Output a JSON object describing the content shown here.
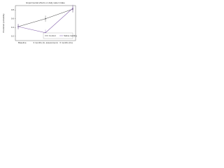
{
  "chart_data": {
    "type": "line",
    "title": "Experimental effects on daily water intake",
    "y_label": "Predicted probability",
    "categories": [
      "Baseline",
      "3 months (G. assessment)",
      "6 months (Fu)"
    ],
    "series": [
      {
        "name": "Control",
        "color": "#555555",
        "values": [
          0.42,
          0.6,
          0.82
        ],
        "errors": [
          0.06,
          0.07,
          0.08
        ]
      },
      {
        "name": "Saline loading",
        "color": "#8c6bb1",
        "values": [
          0.42,
          0.28,
          0.84
        ],
        "errors": [
          0.06,
          0.07,
          0.08
        ]
      }
    ],
    "ylim": [
      0.1,
      0.9
    ],
    "yticks": [
      0.2,
      0.4,
      0.6,
      0.8
    ],
    "grid": false,
    "legend": "lower right"
  }
}
